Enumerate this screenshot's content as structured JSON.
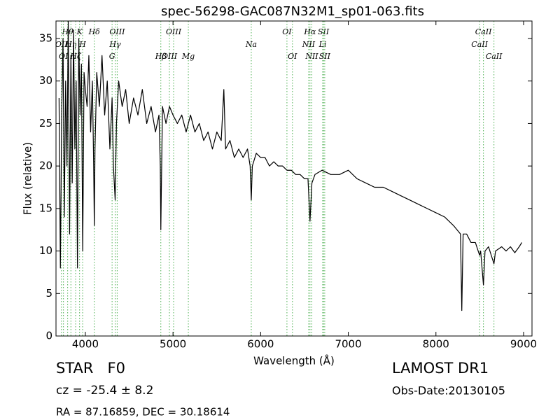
{
  "chart_data": {
    "type": "line",
    "title": "spec-56298-GAC087N32M1_sp01-063.fits",
    "x_label": "Wavelength (Å)",
    "y_label": "Flux (relative)",
    "xlim": [
      3665,
      9096
    ],
    "ylim": [
      0,
      37.06
    ],
    "xticks": [
      4000,
      5000,
      6000,
      7000,
      8000,
      9000
    ],
    "yticks": [
      0,
      5,
      10,
      15,
      20,
      25,
      30,
      35
    ],
    "grid": false,
    "series": [
      {
        "color": "#000000",
        "x": [
          3700,
          3715,
          3730,
          3745,
          3760,
          3775,
          3790,
          3805,
          3820,
          3835,
          3850,
          3865,
          3880,
          3895,
          3910,
          3925,
          3940,
          3955,
          3970,
          3985,
          4000,
          4020,
          4040,
          4060,
          4080,
          4095,
          4102,
          4110,
          4130,
          4160,
          4190,
          4220,
          4250,
          4280,
          4305,
          4320,
          4340,
          4355,
          4380,
          4420,
          4460,
          4500,
          4550,
          4600,
          4650,
          4700,
          4750,
          4800,
          4840,
          4855,
          4861,
          4868,
          4880,
          4920,
          4960,
          5000,
          5050,
          5100,
          5150,
          5200,
          5250,
          5300,
          5350,
          5400,
          5450,
          5500,
          5550,
          5580,
          5600,
          5650,
          5700,
          5750,
          5800,
          5850,
          5880,
          5893,
          5905,
          5950,
          6000,
          6050,
          6100,
          6150,
          6200,
          6250,
          6300,
          6350,
          6400,
          6450,
          6500,
          6540,
          6563,
          6585,
          6620,
          6700,
          6800,
          6900,
          7000,
          7100,
          7200,
          7300,
          7400,
          7500,
          7600,
          7700,
          7800,
          7900,
          8000,
          8100,
          8200,
          8280,
          8295,
          8310,
          8350,
          8400,
          8450,
          8498,
          8510,
          8542,
          8560,
          8600,
          8662,
          8680,
          8750,
          8800,
          8850,
          8900,
          8950,
          8980
        ],
        "values": [
          28,
          8,
          26,
          35,
          14,
          30,
          20,
          37,
          12,
          33,
          18,
          36,
          22,
          30,
          8,
          35,
          26,
          32,
          10,
          31,
          29,
          27,
          33,
          24,
          30,
          20,
          13,
          22,
          31,
          27,
          33,
          26,
          30,
          22,
          28,
          20,
          16,
          25,
          30,
          27,
          29,
          25,
          28,
          26,
          29,
          25,
          27,
          24,
          26,
          20,
          12.5,
          18,
          27,
          25,
          27,
          26,
          25,
          26,
          24,
          26,
          24,
          25,
          23,
          24,
          22,
          24,
          23,
          29,
          22,
          23,
          21,
          22,
          21,
          22,
          20,
          16,
          20,
          21.5,
          21,
          21,
          20,
          20.5,
          20,
          20,
          19.5,
          19.5,
          19,
          19,
          18.5,
          18.5,
          13.5,
          18,
          19,
          19.5,
          19,
          19,
          19.5,
          18.5,
          18,
          17.5,
          17.5,
          17,
          16.5,
          16,
          15.5,
          15,
          14.5,
          14,
          13,
          12,
          3,
          12,
          12,
          11,
          11,
          9.5,
          10,
          6,
          10,
          10.5,
          8.5,
          10,
          10.5,
          10,
          10.5,
          9.8,
          10.5,
          11
        ]
      }
    ],
    "line_color": "#4caf50",
    "lines_row1": [
      {
        "wavelength": 3798,
        "label": "Hθ"
      },
      {
        "wavelength": 3934,
        "label": "K"
      },
      {
        "wavelength": 4102,
        "label": "Hδ"
      },
      {
        "wavelength": 4363,
        "label": "OIII"
      },
      {
        "wavelength": 5007,
        "label": "OIII"
      },
      {
        "wavelength": 6300,
        "label": "OI"
      },
      {
        "wavelength": 6563,
        "label": "Hα"
      },
      {
        "wavelength": 6717,
        "label": "SII"
      },
      {
        "wavelength": 8542,
        "label": "CaII"
      }
    ],
    "lines_row2": [
      {
        "wavelength": 3727,
        "label": "OII"
      },
      {
        "wavelength": 3835,
        "label": "Hη"
      },
      {
        "wavelength": 3969,
        "label": "H"
      },
      {
        "wavelength": 4340,
        "label": "Hγ"
      },
      {
        "wavelength": 5893,
        "label": "Na"
      },
      {
        "wavelength": 6548,
        "label": "NII"
      },
      {
        "wavelength": 6708,
        "label": "Li"
      },
      {
        "wavelength": 8498,
        "label": "CaII"
      }
    ],
    "lines_row3": [
      {
        "wavelength": 3750,
        "label": "OI"
      },
      {
        "wavelength": 3889,
        "label": "Hζ"
      },
      {
        "wavelength": 4305,
        "label": "G"
      },
      {
        "wavelength": 4861,
        "label": "Hβ"
      },
      {
        "wavelength": 4959,
        "label": "OIII"
      },
      {
        "wavelength": 5175,
        "label": "Mg"
      },
      {
        "wavelength": 6363,
        "label": "OI"
      },
      {
        "wavelength": 6584,
        "label": "NII"
      },
      {
        "wavelength": 6731,
        "label": "SII"
      },
      {
        "wavelength": 8662,
        "label": "CaII"
      }
    ],
    "annotations": {
      "class": "STAR   F0",
      "cz": "cz = -25.4 ± 8.2",
      "coords": "RA = 87.16859, DEC = 30.18614",
      "survey": "LAMOST DR1",
      "date": "Obs-Date:20130105"
    }
  }
}
